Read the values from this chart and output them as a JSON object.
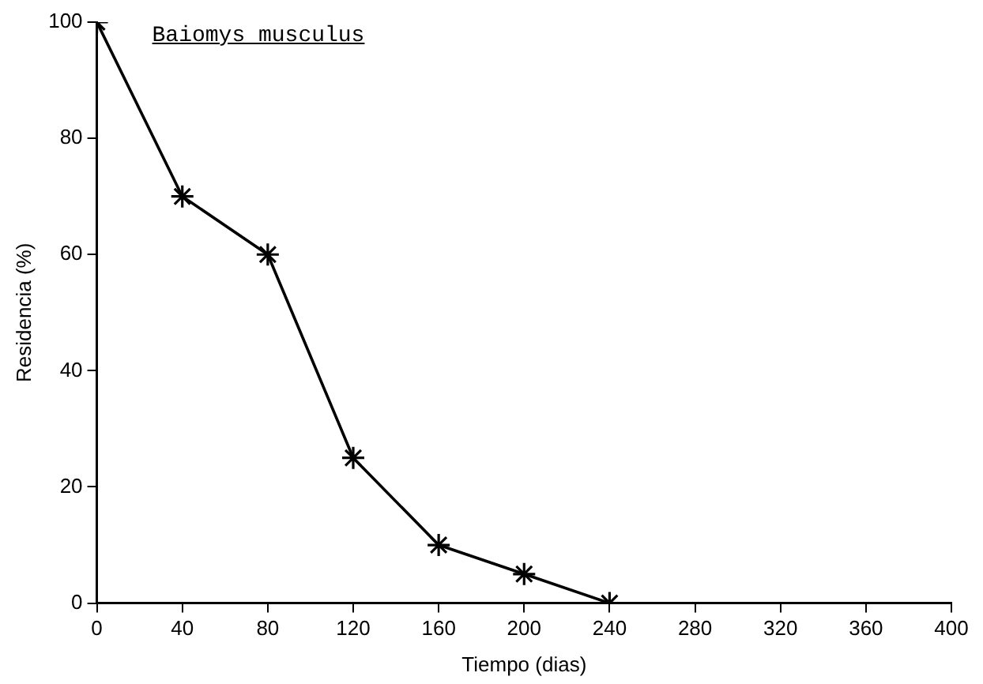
{
  "chart_data": {
    "type": "line",
    "title": "Baiomys musculus",
    "xlabel": "Tiempo (dias)",
    "ylabel": "Residencia (%)",
    "x": [
      0,
      40,
      80,
      120,
      160,
      200,
      240
    ],
    "values": [
      100,
      70,
      60,
      25,
      10,
      5,
      0
    ],
    "color": "#000000",
    "marker": "cross",
    "line_style": "solid",
    "xlim": [
      0,
      400
    ],
    "xticks": [
      0,
      40,
      80,
      120,
      160,
      200,
      240,
      280,
      320,
      360,
      400
    ],
    "ylim": [
      0,
      100
    ],
    "yticks": [
      0,
      20,
      40,
      60,
      80,
      100
    ],
    "grid": false,
    "legend": false
  }
}
